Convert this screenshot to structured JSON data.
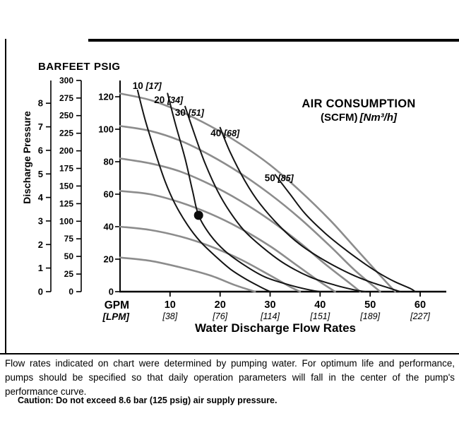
{
  "page": {
    "footer_note": "Flow rates indicated on chart were determined by pumping water. For optimum life and performance, pumps should be specified so that daily operation parameters will fall in the center of the pump's performance curve.",
    "caution": "Caution: Do not exceed 8.6 bar (125 psig) air supply pressure."
  },
  "chart_data": {
    "type": "line",
    "title": "AIR CONSUMPTION",
    "title_unit_bold": "(SCFM)",
    "title_unit_italic": "[Nm³/h]",
    "xlabel": "Water Discharge Flow Rates",
    "ylabel": "Discharge Pressure",
    "axis_headers": {
      "bar": "BAR",
      "feet": "FEET",
      "psig": "PSIG"
    },
    "x_axis": {
      "label_primary": "GPM",
      "label_secondary": "[LPM]",
      "range_gpm": [
        0,
        65
      ],
      "ticks": [
        {
          "value": 10,
          "gpm": "10",
          "lpm": "[38]"
        },
        {
          "value": 20,
          "gpm": "20",
          "lpm": "[76]"
        },
        {
          "value": 30,
          "gpm": "30",
          "lpm": "[114]"
        },
        {
          "value": 40,
          "gpm": "40",
          "lpm": "[151]"
        },
        {
          "value": 50,
          "gpm": "50",
          "lpm": "[189]"
        },
        {
          "value": 60,
          "gpm": "60",
          "lpm": "[227]"
        }
      ]
    },
    "y_axes": {
      "psig": {
        "ticks": [
          0,
          20,
          40,
          60,
          80,
          100,
          120
        ],
        "range": [
          0,
          130
        ],
        "psi_per_unit": 1
      },
      "feet": {
        "ticks": [
          0,
          25,
          50,
          75,
          100,
          125,
          150,
          175,
          200,
          225,
          250,
          275,
          300
        ],
        "psi_per_unit": 0.4335
      },
      "bar": {
        "ticks": [
          0,
          1,
          2,
          3,
          4,
          5,
          6,
          7,
          8
        ],
        "psi_per_unit": 14.5
      }
    },
    "performance_curves": [
      {
        "points": [
          [
            0,
            122
          ],
          [
            6,
            118
          ],
          [
            12,
            111
          ],
          [
            18,
            102
          ],
          [
            24,
            91
          ],
          [
            30,
            78
          ],
          [
            36,
            62
          ],
          [
            42,
            44
          ],
          [
            47,
            27
          ],
          [
            52,
            10
          ],
          [
            55,
            0
          ]
        ]
      },
      {
        "points": [
          [
            0,
            102
          ],
          [
            6,
            99
          ],
          [
            12,
            93
          ],
          [
            18,
            84
          ],
          [
            24,
            73
          ],
          [
            30,
            60
          ],
          [
            36,
            45
          ],
          [
            42,
            28
          ],
          [
            47,
            13
          ],
          [
            52,
            0
          ]
        ]
      },
      {
        "points": [
          [
            0,
            82
          ],
          [
            6,
            79
          ],
          [
            12,
            74
          ],
          [
            18,
            66
          ],
          [
            24,
            56
          ],
          [
            30,
            44
          ],
          [
            36,
            30
          ],
          [
            41,
            17
          ],
          [
            46,
            5
          ],
          [
            48,
            0
          ]
        ]
      },
      {
        "points": [
          [
            0,
            62
          ],
          [
            6,
            60
          ],
          [
            12,
            55
          ],
          [
            18,
            48
          ],
          [
            24,
            39
          ],
          [
            30,
            28
          ],
          [
            35,
            17
          ],
          [
            40,
            6
          ],
          [
            43,
            0
          ]
        ]
      },
      {
        "points": [
          [
            0,
            40
          ],
          [
            6,
            38
          ],
          [
            12,
            34
          ],
          [
            18,
            28
          ],
          [
            24,
            20
          ],
          [
            30,
            10
          ],
          [
            34,
            3
          ],
          [
            36,
            0
          ]
        ]
      },
      {
        "points": [
          [
            0,
            21
          ],
          [
            6,
            19
          ],
          [
            12,
            15
          ],
          [
            18,
            10
          ],
          [
            23,
            4
          ],
          [
            27,
            0
          ]
        ]
      }
    ],
    "air_curves": [
      {
        "scfm": "10",
        "nm3h": "[17]",
        "label_at": [
          2.5,
          124.8
        ],
        "points": [
          [
            3.5,
            124
          ],
          [
            5,
            106
          ],
          [
            7,
            86
          ],
          [
            9,
            68
          ],
          [
            11,
            54
          ],
          [
            13.5,
            41
          ],
          [
            16,
            31
          ],
          [
            19,
            22
          ],
          [
            22,
            14
          ],
          [
            25,
            8
          ],
          [
            28,
            3
          ],
          [
            30,
            0
          ]
        ]
      },
      {
        "scfm": "20",
        "nm3h": "[34]",
        "label_at": [
          6.8,
          116.1
        ],
        "points": [
          [
            9.5,
            122
          ],
          [
            11,
            104
          ],
          [
            13,
            82
          ],
          [
            14.5,
            62
          ],
          [
            15.7,
            47
          ],
          [
            18,
            35
          ],
          [
            21,
            25
          ],
          [
            25,
            16
          ],
          [
            29,
            9
          ],
          [
            34,
            4
          ],
          [
            38,
            1
          ],
          [
            40,
            0
          ]
        ]
      },
      {
        "scfm": "30",
        "nm3h": "[51]",
        "label_at": [
          11.0,
          108.3
        ],
        "points": [
          [
            13,
            114
          ],
          [
            15,
            96
          ],
          [
            17,
            79
          ],
          [
            19.5,
            62
          ],
          [
            22,
            49
          ],
          [
            25,
            37
          ],
          [
            29,
            26
          ],
          [
            33,
            17
          ],
          [
            38,
            9
          ],
          [
            43,
            4
          ],
          [
            47,
            1
          ],
          [
            49,
            0
          ]
        ]
      },
      {
        "scfm": "40",
        "nm3h": "[68]",
        "label_at": [
          18.1,
          95.7
        ],
        "points": [
          [
            20,
            101
          ],
          [
            22,
            86
          ],
          [
            25,
            68
          ],
          [
            28,
            54
          ],
          [
            32,
            40
          ],
          [
            36,
            29
          ],
          [
            41,
            19
          ],
          [
            46,
            11
          ],
          [
            50,
            6
          ],
          [
            54,
            2
          ],
          [
            56,
            0
          ]
        ]
      },
      {
        "scfm": "50",
        "nm3h": "[85]",
        "label_at": [
          28.9,
          68.0
        ],
        "points": [
          [
            31,
            72
          ],
          [
            34,
            60
          ],
          [
            37,
            48
          ],
          [
            41,
            36
          ],
          [
            45,
            26
          ],
          [
            49,
            17
          ],
          [
            52,
            11
          ],
          [
            55,
            6
          ],
          [
            58,
            2
          ],
          [
            59,
            0
          ]
        ]
      }
    ],
    "operating_point": {
      "gpm": 15.7,
      "psig": 47
    },
    "colors": {
      "performance": "#8c8c8c",
      "air": "#141414"
    }
  }
}
